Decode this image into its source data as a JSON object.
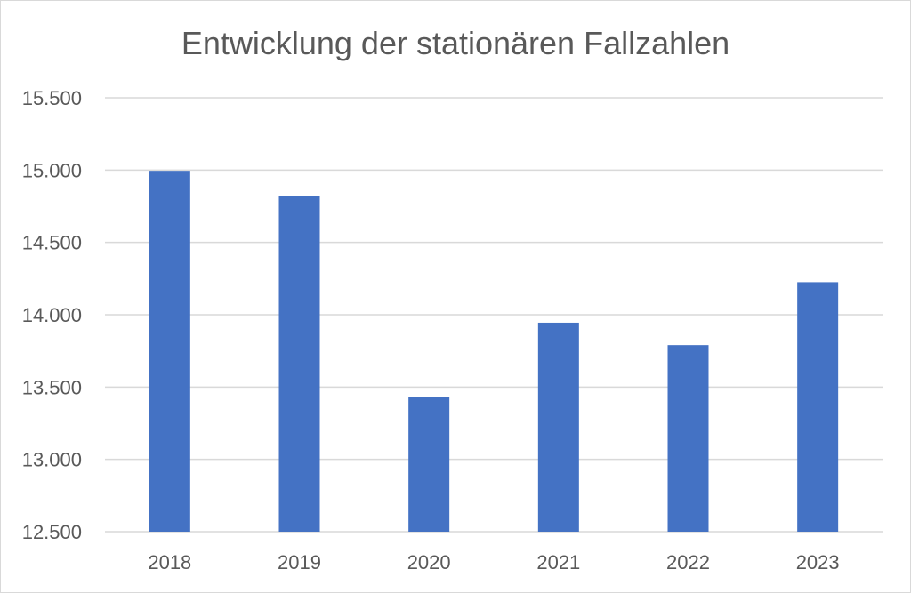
{
  "chart_data": {
    "type": "bar",
    "title": "Entwicklung der stationären Fallzahlen",
    "xlabel": "",
    "ylabel": "",
    "categories": [
      "2018",
      "2019",
      "2020",
      "2021",
      "2022",
      "2023"
    ],
    "values": [
      14995,
      14820,
      13430,
      13945,
      13790,
      14225
    ],
    "ylim": [
      12500,
      15500
    ],
    "y_ticks": [
      12500,
      13000,
      13500,
      14000,
      14500,
      15000,
      15500
    ],
    "y_tick_labels": [
      "12.500",
      "13.000",
      "13.500",
      "14.000",
      "14.500",
      "15.000",
      "15.500"
    ],
    "grid": true,
    "legend": "none",
    "bar_color": "#4472c4",
    "grid_color": "#d9d9d9"
  }
}
